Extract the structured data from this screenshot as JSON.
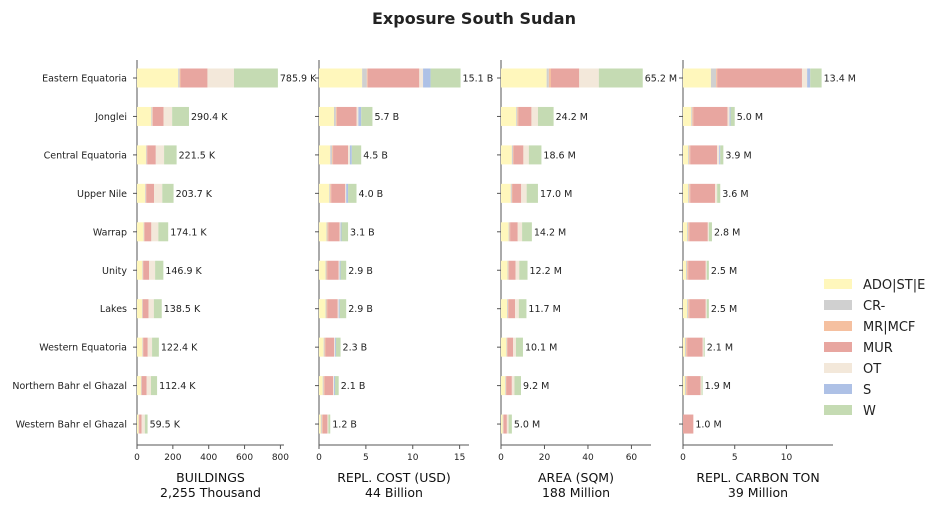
{
  "chart_data": {
    "type": "bar",
    "orientation": "horizontal",
    "stacked": true,
    "title": "Exposure South Sudan",
    "categories": [
      "Eastern Equatoria",
      "Jonglei",
      "Central Equatoria",
      "Upper Nile",
      "Warrap",
      "Unity",
      "Lakes",
      "Western Equatoria",
      "Northern Bahr el Ghazal",
      "Western Bahr el Ghazal"
    ],
    "series_names": [
      "ADO|ST|E",
      "CR-",
      "MR|MCF",
      "MUR",
      "OT",
      "S",
      "W"
    ],
    "series_colors": [
      "#fff7bc",
      "#d0d0d0",
      "#f5c0a0",
      "#e8a6a0",
      "#f3e8da",
      "#aec1e6",
      "#c5dbb3"
    ],
    "legend_position": "right",
    "grid": false,
    "panels": [
      {
        "xlabel": "BUILDINGS",
        "xlabel_total": "2,255 Thousand",
        "xlim": [
          0,
          820
        ],
        "xticks": [
          0,
          200,
          400,
          600,
          800
        ],
        "xtick_labels": [
          "0",
          "200",
          "400",
          "600",
          "800"
        ],
        "totals_labels": [
          "785.9 K",
          "290.4 K",
          "221.5 K",
          "203.7 K",
          "174.1 K",
          "146.9 K",
          "138.5 K",
          "122.4 K",
          "112.4 K",
          "59.5 K"
        ],
        "values": [
          [
            230,
            8,
            5,
            150,
            148,
            0,
            245
          ],
          [
            80,
            5,
            3,
            60,
            48,
            0,
            94
          ],
          [
            50,
            4,
            3,
            48,
            46,
            0,
            70
          ],
          [
            45,
            4,
            3,
            43,
            46,
            0,
            63
          ],
          [
            37,
            3,
            2,
            38,
            39,
            0,
            55
          ],
          [
            30,
            3,
            2,
            33,
            33,
            0,
            46
          ],
          [
            28,
            3,
            2,
            31,
            30,
            0,
            44
          ],
          [
            30,
            3,
            2,
            25,
            24,
            0,
            38
          ],
          [
            22,
            3,
            2,
            27,
            24,
            0,
            34
          ],
          [
            8,
            2,
            2,
            14,
            18,
            0,
            15
          ]
        ]
      },
      {
        "xlabel": "REPL. COST (USD)",
        "xlabel_total": "44 Billion",
        "xlim": [
          0,
          16
        ],
        "xticks": [
          0,
          5,
          10,
          15
        ],
        "xtick_labels": [
          "0",
          "5",
          "10",
          "15"
        ],
        "totals_labels": [
          "15.1 B",
          "5.7 B",
          "4.5 B",
          "4.0 B",
          "3.1 B",
          "2.9 B",
          "2.9 B",
          "2.3 B",
          "2.1 B",
          "1.2 B"
        ],
        "values": [
          [
            4.6,
            0.5,
            0.1,
            5.5,
            0.4,
            0.8,
            3.2
          ],
          [
            1.6,
            0.2,
            0.1,
            2.1,
            0.2,
            0.3,
            1.2
          ],
          [
            1.2,
            0.2,
            0.1,
            1.6,
            0.2,
            0.2,
            1.0
          ],
          [
            1.1,
            0.1,
            0.1,
            1.5,
            0.1,
            0.2,
            0.9
          ],
          [
            0.8,
            0.1,
            0.1,
            1.2,
            0.1,
            0.1,
            0.7
          ],
          [
            0.7,
            0.1,
            0.1,
            1.2,
            0.1,
            0.1,
            0.6
          ],
          [
            0.7,
            0.1,
            0.1,
            1.1,
            0.1,
            0.1,
            0.7
          ],
          [
            0.5,
            0.1,
            0.1,
            0.9,
            0.1,
            0.1,
            0.5
          ],
          [
            0.4,
            0.1,
            0.1,
            0.9,
            0.1,
            0.1,
            0.4
          ],
          [
            0.2,
            0.1,
            0.1,
            0.5,
            0.1,
            0.0,
            0.2
          ]
        ]
      },
      {
        "xlabel": "AREA (SQM)",
        "xlabel_total": "188 Million",
        "xlim": [
          0,
          69
        ],
        "xticks": [
          0,
          20,
          40,
          60
        ],
        "xtick_labels": [
          "0",
          "20",
          "40",
          "60"
        ],
        "totals_labels": [
          "65.2 M",
          "24.2 M",
          "18.6 M",
          "17.0 M",
          "14.2 M",
          "12.2 M",
          "11.7 M",
          "10.1 M",
          "9.2 M",
          "5.0 M"
        ],
        "values": [
          [
            21,
            1,
            1,
            13,
            9,
            0,
            20.2
          ],
          [
            7,
            0.5,
            0.5,
            6,
            3,
            0,
            7.2
          ],
          [
            5,
            0.5,
            0.3,
            4.5,
            2.5,
            0,
            5.8
          ],
          [
            4.5,
            0.5,
            0.3,
            4,
            2.5,
            0,
            5.2
          ],
          [
            3.5,
            0.4,
            0.3,
            3.5,
            2,
            0,
            4.5
          ],
          [
            3,
            0.4,
            0.3,
            3,
            1.7,
            0,
            3.8
          ],
          [
            2.8,
            0.4,
            0.3,
            3,
            1.7,
            0,
            3.5
          ],
          [
            2.5,
            0.3,
            0.2,
            2.6,
            1.3,
            0,
            3.2
          ],
          [
            2,
            0.3,
            0.2,
            2.5,
            1.2,
            0,
            3
          ],
          [
            0.8,
            0.2,
            0.2,
            1.5,
            0.8,
            0,
            1.5
          ]
        ]
      },
      {
        "xlabel": "REPL. CARBON TON",
        "xlabel_total": "39 Million",
        "xlim": [
          0,
          14.5
        ],
        "xticks": [
          0,
          5,
          10
        ],
        "xtick_labels": [
          "0",
          "5",
          "10"
        ],
        "totals_labels": [
          "13.4 M",
          "5.0 M",
          "3.9 M",
          "3.6 M",
          "2.8 M",
          "2.5 M",
          "2.5 M",
          "2.1 M",
          "1.9 M",
          "1.0 M"
        ],
        "values": [
          [
            2.7,
            0.5,
            0.1,
            8.2,
            0.5,
            0.3,
            1.1
          ],
          [
            0.8,
            0.1,
            0.1,
            3.3,
            0.2,
            0.1,
            0.4
          ],
          [
            0.5,
            0.1,
            0.1,
            2.6,
            0.2,
            0.1,
            0.3
          ],
          [
            0.5,
            0.1,
            0.1,
            2.4,
            0.2,
            0.0,
            0.3
          ],
          [
            0.4,
            0.1,
            0.1,
            1.8,
            0.1,
            0.0,
            0.3
          ],
          [
            0.3,
            0.1,
            0.1,
            1.7,
            0.1,
            0.0,
            0.2
          ],
          [
            0.4,
            0.1,
            0.1,
            1.6,
            0.1,
            0.0,
            0.2
          ],
          [
            0.2,
            0.1,
            0.1,
            1.5,
            0.1,
            0.0,
            0.1
          ],
          [
            0.2,
            0.1,
            0.1,
            1.3,
            0.1,
            0.0,
            0.1
          ],
          [
            0.0,
            0.0,
            0.0,
            1.0,
            0.0,
            0.0,
            0.0
          ]
        ]
      }
    ]
  }
}
